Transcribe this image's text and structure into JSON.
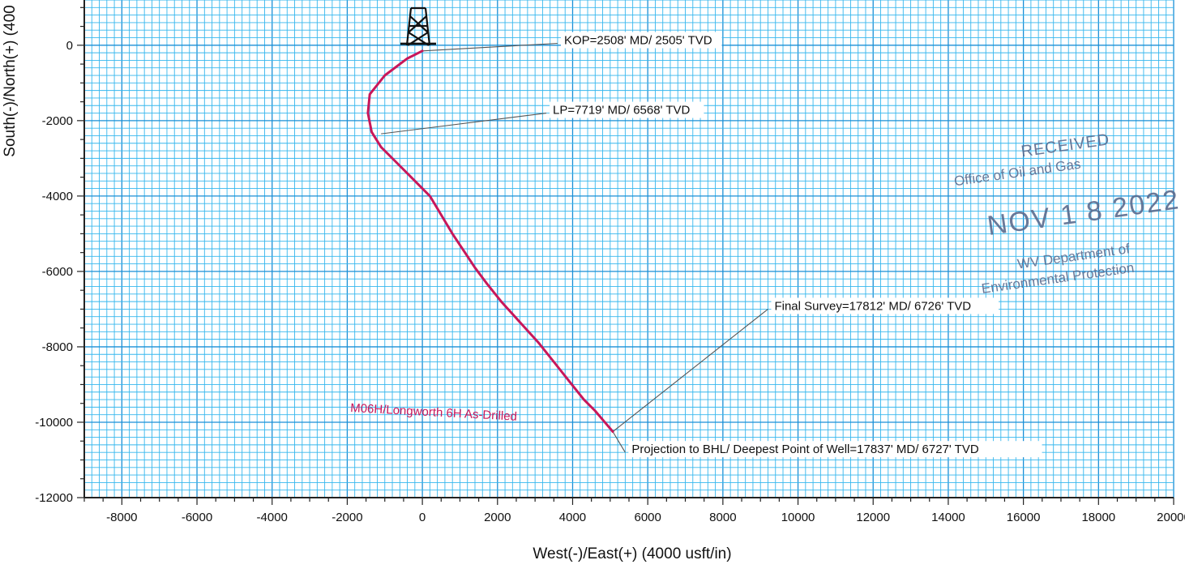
{
  "chart_data": {
    "type": "line",
    "xlabel": "West(-)/East(+) (4000 usft/in)",
    "ylabel": "South(-)/North(+) (400",
    "xlim": [
      -9000,
      20000
    ],
    "ylim": [
      -12000,
      1200
    ],
    "xticks": [
      -8000,
      -6000,
      -4000,
      -2000,
      0,
      2000,
      4000,
      6000,
      8000,
      10000,
      12000,
      14000,
      16000,
      18000,
      20000
    ],
    "yticks": [
      0,
      -2000,
      -4000,
      -6000,
      -8000,
      -10000,
      -12000
    ],
    "grid": true,
    "series": [
      {
        "name": "M06H/Longworth 6H As-Drilled",
        "color": "#c8175a",
        "x": [
          0,
          -400,
          -1000,
          -1400,
          -1450,
          -1350,
          -1100,
          -700,
          -300,
          200,
          500,
          800,
          1100,
          1400,
          1700,
          2100,
          2600,
          3100,
          3500,
          3900,
          4300,
          4600,
          4900,
          5070
        ],
        "y": [
          -150,
          -350,
          -800,
          -1300,
          -1800,
          -2300,
          -2700,
          -3100,
          -3500,
          -4000,
          -4500,
          -5000,
          -5450,
          -5900,
          -6300,
          -6800,
          -7350,
          -7900,
          -8400,
          -8900,
          -9400,
          -9700,
          -10050,
          -10250
        ]
      }
    ],
    "annotations": [
      {
        "text": "KOP=2508' MD/ 2505' TVD",
        "x": 0,
        "y": -150,
        "label_x": 3600,
        "label_y": 50
      },
      {
        "text": "LP=7719' MD/ 6568' TVD",
        "x": -1100,
        "y": -2350,
        "label_x": 3300,
        "label_y": -1800
      },
      {
        "text": "Final Survey=17812' MD/ 6726' TVD",
        "x": 5070,
        "y": -10250,
        "label_x": 9200,
        "label_y": -7000
      },
      {
        "text": "Projection to BHL/ Deepest Point of Well=17837' MD/ 6727' TVD",
        "x": 5070,
        "y": -10250,
        "label_x": 5400,
        "label_y": -10800
      }
    ],
    "marker": {
      "type": "drilling-rig-icon",
      "x": 0,
      "y": 200
    }
  },
  "stamp": {
    "lines": [
      "RECEIVED",
      "Office of Oil and Gas",
      "NOV 1 8 2022",
      "WV Department of",
      "Environmental Protection"
    ],
    "color": "#5a6b8e"
  }
}
